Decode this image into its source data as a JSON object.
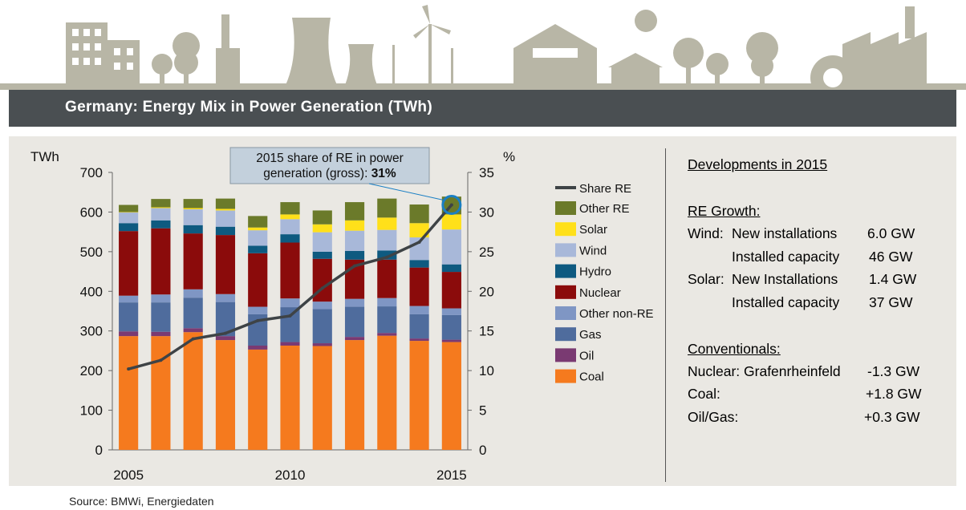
{
  "header": {
    "title": "Germany: Energy Mix in Power Generation (TWh)"
  },
  "source": "Source: BMWi, Energiedaten",
  "annotation": {
    "text_line1": "2015 share of RE  in power",
    "text_line2_prefix": "generation (gross): ",
    "text_line2_value": "31%"
  },
  "developments": {
    "title": "Developments in 2015",
    "re_growth_title": "RE Growth:",
    "re_rows": [
      {
        "label": "Wind:",
        "item": "New installations",
        "value": "6.0 GW"
      },
      {
        "label": "",
        "item": "Installed capacity",
        "value": "46 GW"
      },
      {
        "label": "Solar:",
        "item": "New Installations",
        "value": "1.4 GW"
      },
      {
        "label": "",
        "item": "Installed capacity",
        "value": "37 GW"
      }
    ],
    "conventionals_title": "Conventionals:",
    "conv_rows": [
      {
        "label": "Nuclear: Grafenrheinfeld",
        "value": "-1.3 GW"
      },
      {
        "label": "Coal:",
        "value": "+1.8 GW"
      },
      {
        "label": "Oil/Gas:",
        "value": "+0.3 GW"
      }
    ]
  },
  "chart_data": {
    "type": "bar",
    "stacked": true,
    "categories": [
      "2005",
      "2006",
      "2007",
      "2008",
      "2009",
      "2010",
      "2011",
      "2012",
      "2013",
      "2014",
      "2015"
    ],
    "x_tick_labels": [
      "2005",
      "2010",
      "2015"
    ],
    "ylabel": "TWh",
    "ylim": [
      0,
      700
    ],
    "yticks": [
      0,
      100,
      200,
      300,
      400,
      500,
      600,
      700
    ],
    "y2label": "%",
    "y2lim": [
      0,
      35
    ],
    "y2ticks": [
      0,
      5,
      10,
      15,
      20,
      25,
      30,
      35
    ],
    "grid": false,
    "legend_position": "right",
    "series": [
      {
        "name": "Coal",
        "color": "#f57a1e",
        "values": [
          287,
          287,
          297,
          277,
          253,
          263,
          262,
          277,
          288,
          275,
          272
        ]
      },
      {
        "name": "Oil",
        "color": "#7a3a72",
        "values": [
          12,
          11,
          10,
          10,
          10,
          9,
          7,
          8,
          7,
          6,
          6
        ]
      },
      {
        "name": "Gas",
        "color": "#4f6c9d",
        "values": [
          73,
          74,
          77,
          86,
          79,
          88,
          86,
          76,
          67,
          61,
          62
        ]
      },
      {
        "name": "Other non-RE",
        "color": "#7f96c4",
        "values": [
          17,
          20,
          21,
          20,
          19,
          22,
          19,
          20,
          21,
          21,
          17
        ]
      },
      {
        "name": "Nuclear",
        "color": "#8b0b0b",
        "values": [
          163,
          167,
          141,
          149,
          135,
          141,
          108,
          99,
          97,
          97,
          92
        ]
      },
      {
        "name": "Hydro",
        "color": "#0e5a80",
        "values": [
          20,
          20,
          21,
          21,
          19,
          21,
          18,
          22,
          23,
          19,
          19
        ]
      },
      {
        "name": "Wind",
        "color": "#a8b8d9",
        "values": [
          27,
          31,
          40,
          41,
          39,
          38,
          49,
          51,
          52,
          57,
          88
        ]
      },
      {
        "name": "Solar",
        "color": "#ffe01a",
        "values": [
          1,
          2,
          3,
          4,
          7,
          12,
          20,
          26,
          31,
          36,
          38
        ]
      },
      {
        "name": "Other RE",
        "color": "#6b7a2a",
        "values": [
          18,
          21,
          23,
          26,
          29,
          31,
          35,
          46,
          48,
          47,
          45
        ]
      }
    ],
    "line": {
      "name": "Share RE",
      "axis": "y2",
      "color": "#3e4346",
      "values": [
        10.2,
        11.3,
        14.0,
        14.7,
        16.3,
        16.9,
        20.4,
        23.2,
        24.3,
        26.2,
        30.9
      ]
    },
    "annotation_value": "31%"
  }
}
